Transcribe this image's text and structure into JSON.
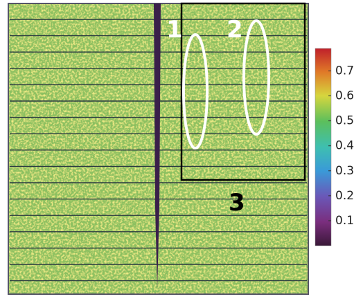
{
  "image": {
    "annotations": [
      {
        "label": "1"
      },
      {
        "label": "2"
      },
      {
        "label": "3"
      }
    ]
  },
  "colorbar": {
    "lim": [
      0,
      0.79
    ],
    "ticks": [
      0.1,
      0.2,
      0.3,
      0.4,
      0.5,
      0.6,
      0.7
    ]
  }
}
